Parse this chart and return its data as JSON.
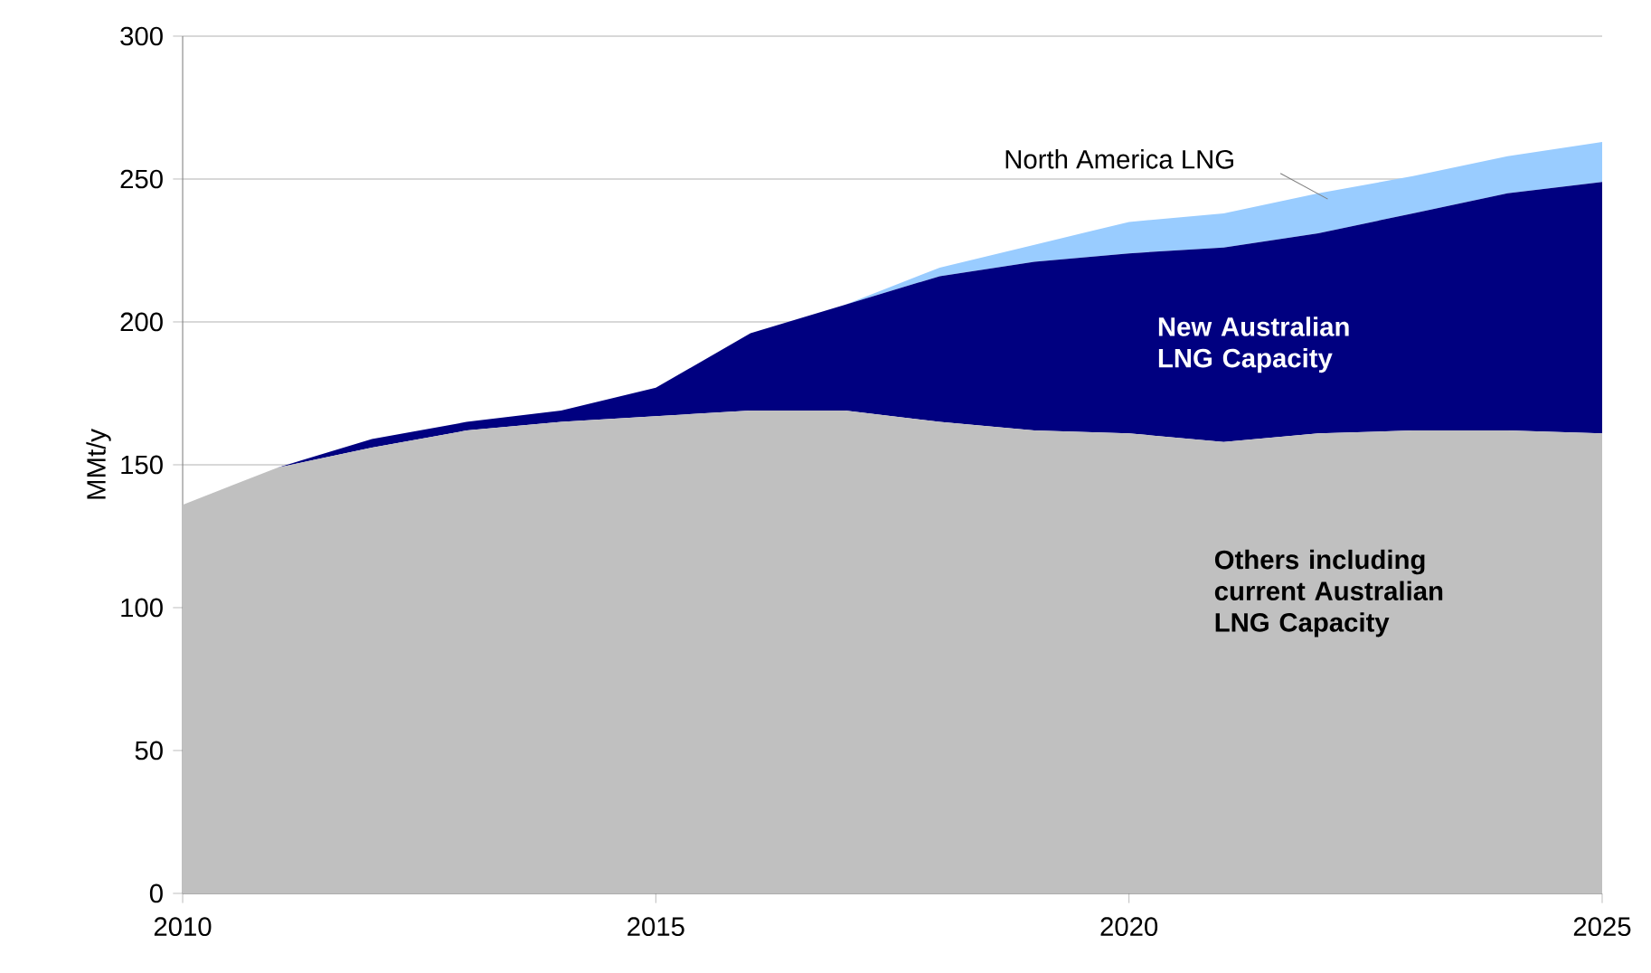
{
  "chart_data": {
    "type": "area",
    "stacked": true,
    "ylabel": "MMt/y",
    "x": [
      2010,
      2011,
      2012,
      2013,
      2014,
      2015,
      2016,
      2017,
      2018,
      2019,
      2020,
      2021,
      2022,
      2023,
      2024,
      2025
    ],
    "series": [
      {
        "name": "Others including current Australian LNG Capacity",
        "color": "#c0c0c0",
        "values": [
          136,
          149,
          156,
          162,
          165,
          167,
          169,
          169,
          165,
          162,
          161,
          158,
          161,
          162,
          162,
          161
        ]
      },
      {
        "name": "New Australian LNG Capacity",
        "color": "#000080",
        "values": [
          0,
          0,
          3,
          3,
          4,
          10,
          27,
          37,
          51,
          59,
          63,
          68,
          70,
          76,
          83,
          88
        ]
      },
      {
        "name": "North America LNG",
        "color": "#99ccff",
        "values": [
          0,
          0,
          0,
          0,
          0,
          0,
          0,
          0,
          3,
          6,
          11,
          12,
          14,
          13,
          13,
          14
        ]
      }
    ],
    "xlim": [
      2010,
      2025
    ],
    "ylim": [
      0,
      300
    ],
    "xticks": [
      2010,
      2015,
      2020,
      2025
    ],
    "yticks": [
      0,
      50,
      100,
      150,
      200,
      250,
      300
    ],
    "grid": "y",
    "legend": false
  }
}
